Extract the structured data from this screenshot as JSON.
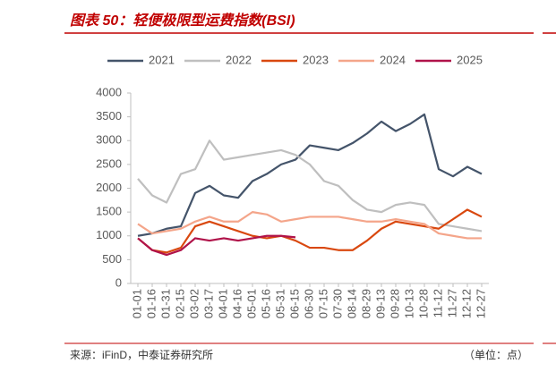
{
  "chart_data": {
    "type": "line",
    "title": "图表 50：轻便极限型运费指数(BSI)",
    "source": "来源：iFinD，中泰证券研究所",
    "unit": "（单位：点）",
    "categories": [
      "01-01",
      "01-16",
      "01-31",
      "02-15",
      "03-02",
      "03-17",
      "04-01",
      "04-16",
      "05-01",
      "05-16",
      "05-31",
      "06-15",
      "06-30",
      "07-15",
      "07-30",
      "08-14",
      "08-29",
      "09-13",
      "09-28",
      "10-13",
      "10-28",
      "11-12",
      "11-27",
      "12-12",
      "12-27"
    ],
    "series": [
      {
        "name": "2021",
        "color": "#44546a",
        "values": [
          1000,
          1050,
          1150,
          1200,
          1900,
          2050,
          1850,
          1800,
          2150,
          2300,
          2500,
          2600,
          2900,
          2850,
          2800,
          2950,
          3150,
          3400,
          3200,
          3350,
          3550,
          2400,
          2250,
          2450,
          2300
        ]
      },
      {
        "name": "2022",
        "color": "#bfbfbf",
        "values": [
          2200,
          1850,
          1700,
          2300,
          2400,
          3000,
          2600,
          2650,
          2700,
          2750,
          2800,
          2700,
          2500,
          2150,
          2050,
          1750,
          1550,
          1500,
          1650,
          1700,
          1650,
          1250,
          1200,
          1150,
          1100
        ]
      },
      {
        "name": "2023",
        "color": "#d9480f",
        "values": [
          950,
          700,
          650,
          750,
          1200,
          1300,
          1200,
          1100,
          1000,
          950,
          1000,
          900,
          750,
          750,
          700,
          700,
          900,
          1150,
          1300,
          1250,
          1200,
          1150,
          1350,
          1550,
          1400
        ]
      },
      {
        "name": "2024",
        "color": "#f4a58a",
        "values": [
          1250,
          1050,
          1100,
          1150,
          1300,
          1400,
          1300,
          1300,
          1500,
          1450,
          1300,
          1350,
          1400,
          1400,
          1400,
          1350,
          1300,
          1300,
          1350,
          1300,
          1250,
          1050,
          1000,
          950,
          950
        ]
      },
      {
        "name": "2025",
        "color": "#b0134a",
        "values": [
          950,
          700,
          600,
          700,
          950,
          900,
          950,
          900,
          950,
          1000,
          1000,
          970,
          null,
          null,
          null,
          null,
          null,
          null,
          null,
          null,
          null,
          null,
          null,
          null,
          null
        ]
      }
    ],
    "ylim": [
      0,
      4000
    ],
    "yticks": [
      0,
      500,
      1000,
      1500,
      2000,
      2500,
      3000,
      3500,
      4000
    ],
    "grid": false
  }
}
